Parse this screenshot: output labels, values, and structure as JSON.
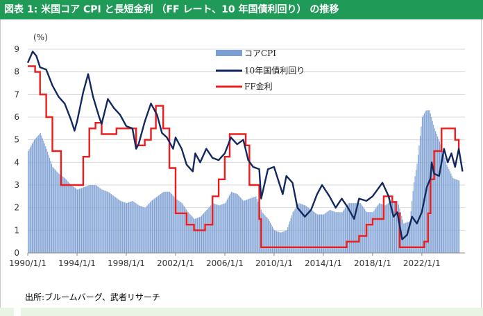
{
  "title": "図表 1: 米国コア CPI と長短金利 （FF レート、10 年国債利回り） の推移",
  "source": "出所:ブルームバーグ、武者リサーチ",
  "colors": {
    "title_bg": "#1f9a57",
    "cpi": "#7c9fd3",
    "yield10": "#13285e",
    "ff": "#ee1c1c"
  },
  "chart_data": {
    "type": "bar",
    "title": "",
    "ylabel": "(%)",
    "ylim": [
      0,
      9
    ],
    "yticks": [
      "0",
      "1",
      "2",
      "3",
      "4",
      "5",
      "6",
      "7",
      "8",
      "9"
    ],
    "xlim": [
      1990.0,
      2025.5
    ],
    "xtick_labels": [
      "1990/1/1",
      "1994/1/1",
      "1998/1/1",
      "2002/1/1",
      "2006/1/1",
      "2010/1/1",
      "2014/1/1",
      "2018/1/1",
      "2022/1/1"
    ],
    "xtick_years": [
      1990,
      1994,
      1998,
      2002,
      2006,
      2010,
      2014,
      2018,
      2022
    ],
    "legend": [
      "コアCPI",
      "10年国債利回り",
      "FF金利"
    ],
    "series": [
      {
        "name": "コアCPI",
        "kind": "bar",
        "x": [
          1990.0,
          1990.5,
          1991.0,
          1991.5,
          1992.0,
          1992.5,
          1993.0,
          1993.5,
          1994.0,
          1994.5,
          1995.0,
          1995.5,
          1996.0,
          1996.5,
          1997.0,
          1997.5,
          1998.0,
          1998.5,
          1999.0,
          1999.5,
          2000.0,
          2000.5,
          2001.0,
          2001.5,
          2002.0,
          2002.5,
          2003.0,
          2003.5,
          2004.0,
          2004.5,
          2005.0,
          2005.5,
          2006.0,
          2006.5,
          2007.0,
          2007.5,
          2008.0,
          2008.5,
          2009.0,
          2009.5,
          2010.0,
          2010.5,
          2011.0,
          2011.5,
          2012.0,
          2012.5,
          2013.0,
          2013.5,
          2014.0,
          2014.5,
          2015.0,
          2015.5,
          2016.0,
          2016.5,
          2017.0,
          2017.5,
          2018.0,
          2018.5,
          2019.0,
          2019.5,
          2020.0,
          2020.5,
          2021.0,
          2021.3,
          2021.6,
          2022.0,
          2022.3,
          2022.6,
          2023.0,
          2023.5,
          2024.0,
          2024.5,
          2025.0
        ],
        "values": [
          4.5,
          5.0,
          5.3,
          4.6,
          3.8,
          3.5,
          3.3,
          3.0,
          2.8,
          2.9,
          3.0,
          3.0,
          2.8,
          2.7,
          2.5,
          2.3,
          2.2,
          2.3,
          2.1,
          2.0,
          2.3,
          2.5,
          2.7,
          2.7,
          2.4,
          2.2,
          1.8,
          1.5,
          1.6,
          1.9,
          2.2,
          2.1,
          2.2,
          2.7,
          2.6,
          2.3,
          2.4,
          2.5,
          1.8,
          1.5,
          1.0,
          0.9,
          1.0,
          1.8,
          2.2,
          2.1,
          1.9,
          1.7,
          1.7,
          1.9,
          1.8,
          1.8,
          2.2,
          2.2,
          2.2,
          1.8,
          1.8,
          2.2,
          2.1,
          2.3,
          2.3,
          1.3,
          1.4,
          3.0,
          4.0,
          6.0,
          6.3,
          6.3,
          5.5,
          4.8,
          3.9,
          3.3,
          3.2
        ]
      },
      {
        "name": "10年国債利回り",
        "kind": "line",
        "x": [
          1990.0,
          1990.4,
          1990.7,
          1991.0,
          1991.5,
          1992.0,
          1992.5,
          1993.0,
          1993.5,
          1993.8,
          1994.0,
          1994.5,
          1994.9,
          1995.3,
          1995.8,
          1996.0,
          1996.5,
          1997.0,
          1997.5,
          1998.0,
          1998.5,
          1998.8,
          1999.0,
          1999.5,
          2000.0,
          2000.5,
          2000.9,
          2001.3,
          2001.8,
          2002.0,
          2002.5,
          2002.9,
          2003.4,
          2003.6,
          2004.0,
          2004.5,
          2005.0,
          2005.5,
          2006.0,
          2006.5,
          2007.0,
          2007.5,
          2007.9,
          2008.3,
          2008.8,
          2008.95,
          2009.5,
          2010.0,
          2010.7,
          2011.0,
          2011.5,
          2011.9,
          2012.5,
          2013.0,
          2013.5,
          2013.9,
          2014.5,
          2015.0,
          2015.5,
          2016.0,
          2016.5,
          2016.9,
          2017.5,
          2018.0,
          2018.8,
          2019.3,
          2019.7,
          2020.0,
          2020.4,
          2020.8,
          2021.2,
          2021.6,
          2022.0,
          2022.4,
          2022.7,
          2022.8,
          2023.0,
          2023.4,
          2023.8,
          2024.1,
          2024.4,
          2024.7,
          2025.0,
          2025.3
        ],
        "values": [
          8.4,
          8.9,
          8.7,
          8.2,
          8.1,
          7.4,
          6.9,
          6.6,
          5.9,
          5.4,
          5.8,
          7.1,
          7.9,
          6.9,
          6.0,
          5.7,
          6.8,
          6.4,
          6.1,
          5.6,
          5.5,
          4.6,
          4.8,
          5.8,
          6.6,
          6.1,
          5.3,
          5.1,
          4.6,
          5.1,
          4.6,
          3.9,
          3.6,
          4.4,
          4.0,
          4.6,
          4.2,
          4.1,
          4.4,
          5.1,
          4.8,
          5.0,
          4.1,
          3.8,
          3.7,
          2.4,
          3.7,
          3.8,
          2.6,
          3.4,
          3.1,
          2.0,
          1.6,
          1.9,
          2.6,
          3.0,
          2.5,
          2.0,
          2.4,
          2.0,
          1.5,
          2.4,
          2.3,
          2.5,
          3.1,
          2.5,
          1.6,
          1.8,
          0.6,
          0.8,
          1.6,
          1.3,
          1.8,
          2.9,
          3.3,
          4.0,
          3.5,
          3.4,
          4.6,
          4.0,
          4.4,
          3.8,
          4.6,
          3.6
        ]
      },
      {
        "name": "FF金利",
        "kind": "step",
        "x": [
          1990.0,
          1990.6,
          1991.0,
          1991.5,
          1992.0,
          1992.7,
          1994.0,
          1994.5,
          1995.0,
          1995.5,
          1996.0,
          1997.2,
          1998.0,
          1998.8,
          1999.5,
          2000.0,
          2000.4,
          2001.0,
          2001.5,
          2002.0,
          2002.9,
          2003.5,
          2004.4,
          2005.0,
          2005.5,
          2006.0,
          2006.4,
          2007.7,
          2008.0,
          2008.8,
          2008.95,
          2015.9,
          2016.9,
          2017.5,
          2018.0,
          2018.9,
          2019.6,
          2019.9,
          2020.2,
          2022.2,
          2022.5,
          2022.7,
          2023.0,
          2023.6,
          2024.7,
          2025.0
        ],
        "values": [
          8.25,
          8.0,
          7.0,
          6.0,
          4.5,
          3.0,
          3.0,
          4.25,
          5.5,
          5.75,
          5.25,
          5.5,
          5.5,
          4.75,
          5.0,
          5.5,
          6.5,
          5.5,
          3.75,
          1.75,
          1.25,
          1.0,
          1.25,
          2.5,
          3.25,
          4.25,
          5.25,
          4.75,
          3.0,
          1.5,
          0.25,
          0.5,
          0.75,
          1.25,
          1.5,
          2.5,
          2.25,
          1.75,
          0.25,
          0.5,
          1.75,
          3.25,
          4.5,
          5.5,
          5.0,
          4.5
        ]
      }
    ]
  }
}
